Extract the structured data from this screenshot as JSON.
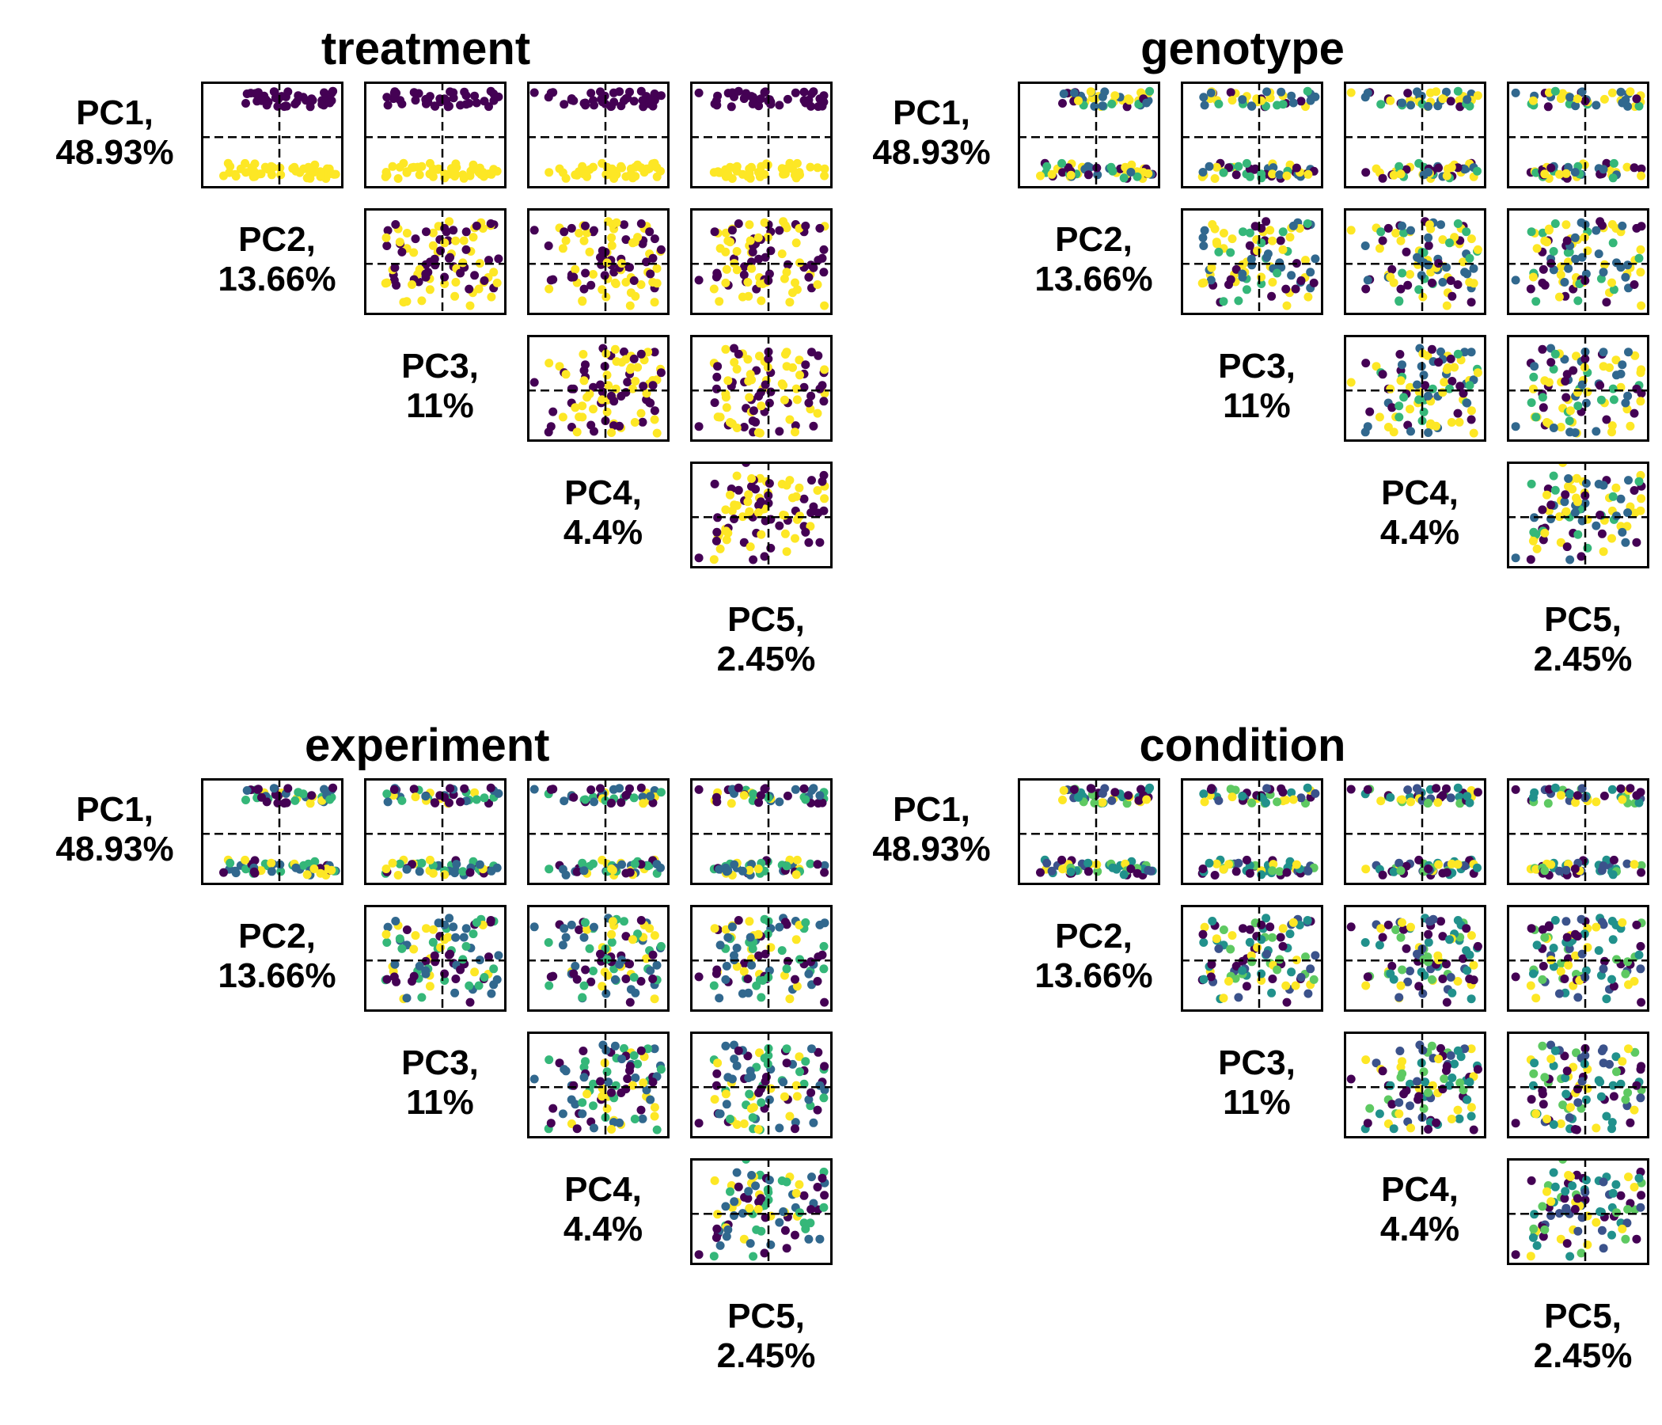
{
  "chart_data": {
    "type": "scatter",
    "pc_labels": [
      {
        "pc": "PC1,",
        "pct": "48.93%"
      },
      {
        "pc": "PC2,",
        "pct": "13.66%"
      },
      {
        "pc": "PC3,",
        "pct": "11%"
      },
      {
        "pc": "PC4,",
        "pct": "4.4%"
      },
      {
        "pc": "PC5,",
        "pct": "2.45%"
      }
    ],
    "groups": [
      {
        "title": "treatment",
        "palette": [
          "#440154",
          "#fde725"
        ]
      },
      {
        "title": "genotype",
        "palette": [
          "#440154",
          "#31688e",
          "#35b779",
          "#fde725"
        ]
      },
      {
        "title": "experiment",
        "palette": [
          "#440154",
          "#31688e",
          "#35b779",
          "#fde725"
        ]
      },
      {
        "title": "condition",
        "palette": [
          "#440154",
          "#3b528b",
          "#21918c",
          "#5ec962",
          "#fde725"
        ]
      }
    ],
    "reference_lines": {
      "x": 0,
      "y": 0,
      "style": "dashed"
    },
    "ticks": "none",
    "grid": false,
    "legend": "none"
  }
}
